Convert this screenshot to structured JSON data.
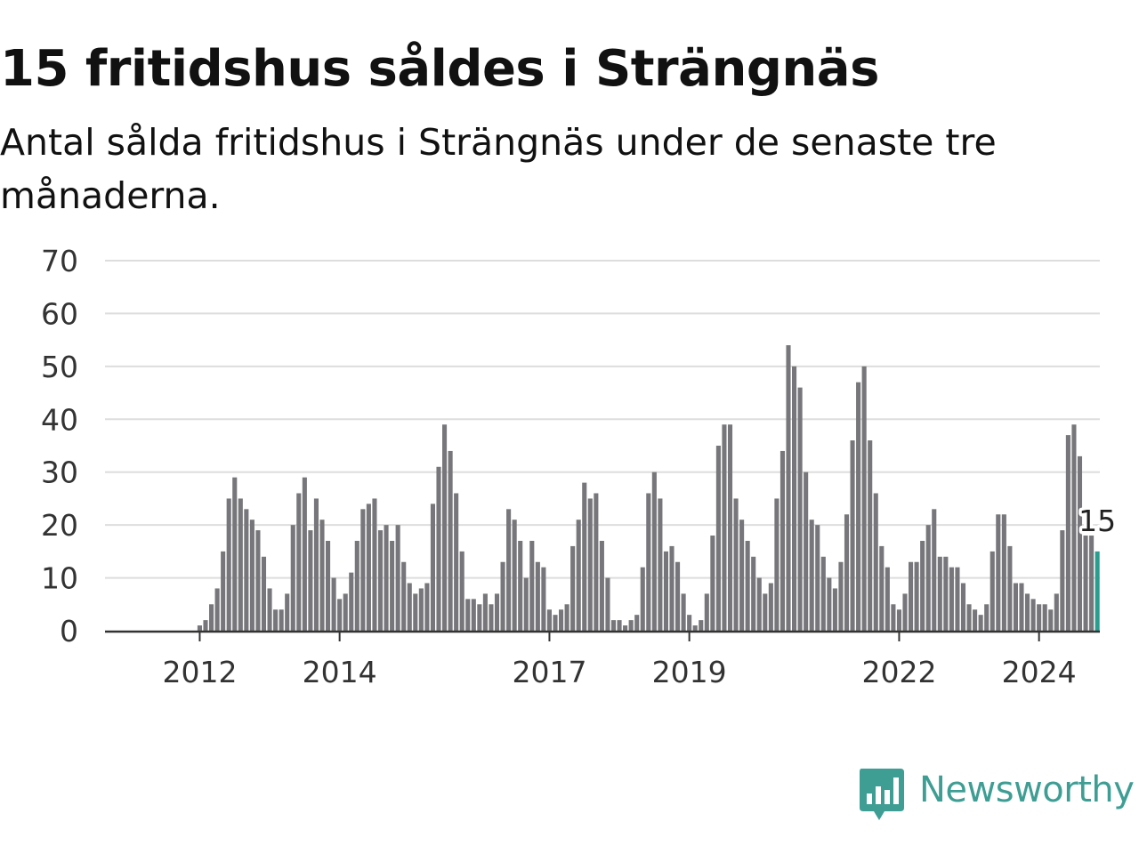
{
  "title": "15 fritidshus såldes i Strängnäs",
  "subtitle": "Antal sålda fritidshus i Strängnäs under de senaste tre månaderna.",
  "brand": {
    "name": "Newsworthy",
    "icon": "newsworthy-logo-icon",
    "color": "#3e9e94"
  },
  "chart_data": {
    "type": "bar",
    "title": "15 fritidshus såldes i Strängnäs",
    "subtitle": "Antal sålda fritidshus i Strängnäs under de senaste tre månaderna.",
    "xlabel": "",
    "ylabel": "",
    "ylim": [
      0,
      70
    ],
    "yticks": [
      "0",
      "10",
      "20",
      "30",
      "40",
      "50",
      "60",
      "70"
    ],
    "x_tick_labels": [
      {
        "label": "2012",
        "index": 8
      },
      {
        "label": "2014",
        "index": 32
      },
      {
        "label": "2017",
        "index": 68
      },
      {
        "label": "2019",
        "index": 92
      },
      {
        "label": "2022",
        "index": 128
      },
      {
        "label": "2024",
        "index": 152
      }
    ],
    "grid": true,
    "bar_color": "#77777b",
    "highlight_color": "#2a9d8f",
    "highlight_label": "15",
    "values": [
      0,
      0,
      0,
      0,
      0,
      0,
      0,
      0,
      1,
      2,
      5,
      8,
      15,
      25,
      29,
      25,
      23,
      21,
      19,
      14,
      8,
      4,
      4,
      7,
      20,
      26,
      29,
      19,
      25,
      21,
      17,
      10,
      6,
      7,
      11,
      17,
      23,
      24,
      25,
      19,
      20,
      17,
      20,
      13,
      9,
      7,
      8,
      9,
      24,
      31,
      39,
      34,
      26,
      15,
      6,
      6,
      5,
      7,
      5,
      7,
      13,
      23,
      21,
      17,
      10,
      17,
      13,
      12,
      4,
      3,
      4,
      5,
      16,
      21,
      28,
      25,
      26,
      17,
      10,
      2,
      2,
      1,
      2,
      3,
      12,
      26,
      30,
      25,
      15,
      16,
      13,
      7,
      3,
      1,
      2,
      7,
      18,
      35,
      39,
      39,
      25,
      21,
      17,
      14,
      10,
      7,
      9,
      25,
      34,
      54,
      50,
      46,
      30,
      21,
      20,
      14,
      10,
      8,
      13,
      22,
      36,
      47,
      50,
      36,
      26,
      16,
      12,
      5,
      4,
      7,
      13,
      13,
      17,
      20,
      23,
      14,
      14,
      12,
      12,
      9,
      5,
      4,
      3,
      5,
      15,
      22,
      22,
      16,
      9,
      9,
      7,
      6,
      5,
      5,
      4,
      7,
      19,
      37,
      39,
      33,
      18,
      18,
      15
    ]
  }
}
